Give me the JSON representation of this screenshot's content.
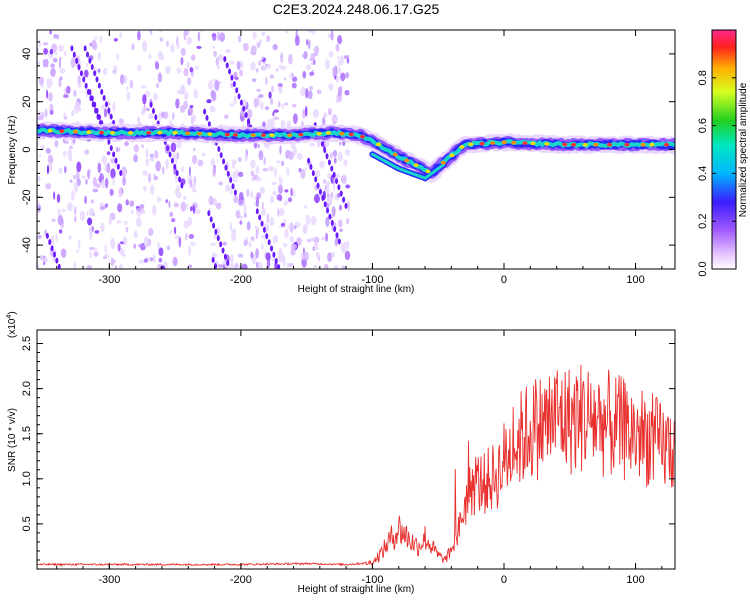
{
  "title": "C2E3.2024.248.06.17.G25",
  "chart_data": [
    {
      "type": "heatmap",
      "xlabel": "Height of straight line (km)",
      "ylabel": "Frequency (Hz)",
      "xlim": [
        -355,
        130
      ],
      "ylim": [
        -50,
        50
      ],
      "xticks": [
        -300,
        -200,
        -100,
        0,
        100
      ],
      "yticks": [
        -40,
        -20,
        0,
        20,
        40
      ],
      "colorbar": {
        "label": "Normalized spectral amplitude",
        "range": [
          0,
          1
        ],
        "ticks": [
          0.0,
          0.2,
          0.4,
          0.6,
          0.8
        ],
        "colormap": "rainbow (white-violet-blue-cyan-green-yellow-red-magenta)"
      },
      "ridge": {
        "description": "strong frequency ridge near 8 Hz for heights below -130 km, dipping to about -12 Hz near -55 km, then near 2 Hz up to 130 km; scattered noise for heights below -120 km",
        "x": [
          -355,
          -300,
          -250,
          -200,
          -160,
          -130,
          -110,
          -95,
          -80,
          -65,
          -55,
          -45,
          -30,
          0,
          50,
          100,
          130
        ],
        "y": [
          8,
          7,
          7,
          6,
          6,
          7,
          6,
          2,
          -3,
          -7,
          -10,
          -5,
          2,
          3,
          2,
          2,
          2
        ]
      }
    },
    {
      "type": "line",
      "xlabel": "Height of straight line (km)",
      "ylabel": "SNR (10 * v/v)",
      "y_scale_note": "(x10",
      "y_scale_exp": "4",
      "xlim": [
        -355,
        130
      ],
      "ylim": [
        0,
        2.65
      ],
      "xticks": [
        -300,
        -200,
        -100,
        0,
        100
      ],
      "yticks": [
        0.5,
        1.0,
        1.5,
        2.0,
        2.5
      ],
      "ytick_labels": [
        "0.5",
        "1.0",
        "1.5",
        "2.0",
        "2.5"
      ],
      "color": "#e8302e",
      "series": [
        {
          "x": [
            -355,
            -300,
            -250,
            -200,
            -150,
            -120,
            -100,
            -92,
            -88,
            -85,
            -80,
            -75,
            -70,
            -65,
            -60,
            -55,
            -50,
            -45,
            -40,
            -35,
            -30,
            -25,
            -20,
            -15,
            -10,
            -5,
            0,
            10,
            20,
            30,
            40,
            50,
            60,
            70,
            80,
            90,
            100,
            110,
            120,
            130
          ],
          "y": [
            0.05,
            0.05,
            0.05,
            0.05,
            0.06,
            0.05,
            0.07,
            0.2,
            0.3,
            0.35,
            0.45,
            0.38,
            0.3,
            0.25,
            0.35,
            0.25,
            0.15,
            0.1,
            0.2,
            0.4,
            0.7,
            0.9,
            0.95,
            0.95,
            1.0,
            1.05,
            1.2,
            1.4,
            1.55,
            1.6,
            1.7,
            1.65,
            1.7,
            1.65,
            1.6,
            1.55,
            1.5,
            1.45,
            1.35,
            1.35
          ]
        }
      ]
    }
  ]
}
